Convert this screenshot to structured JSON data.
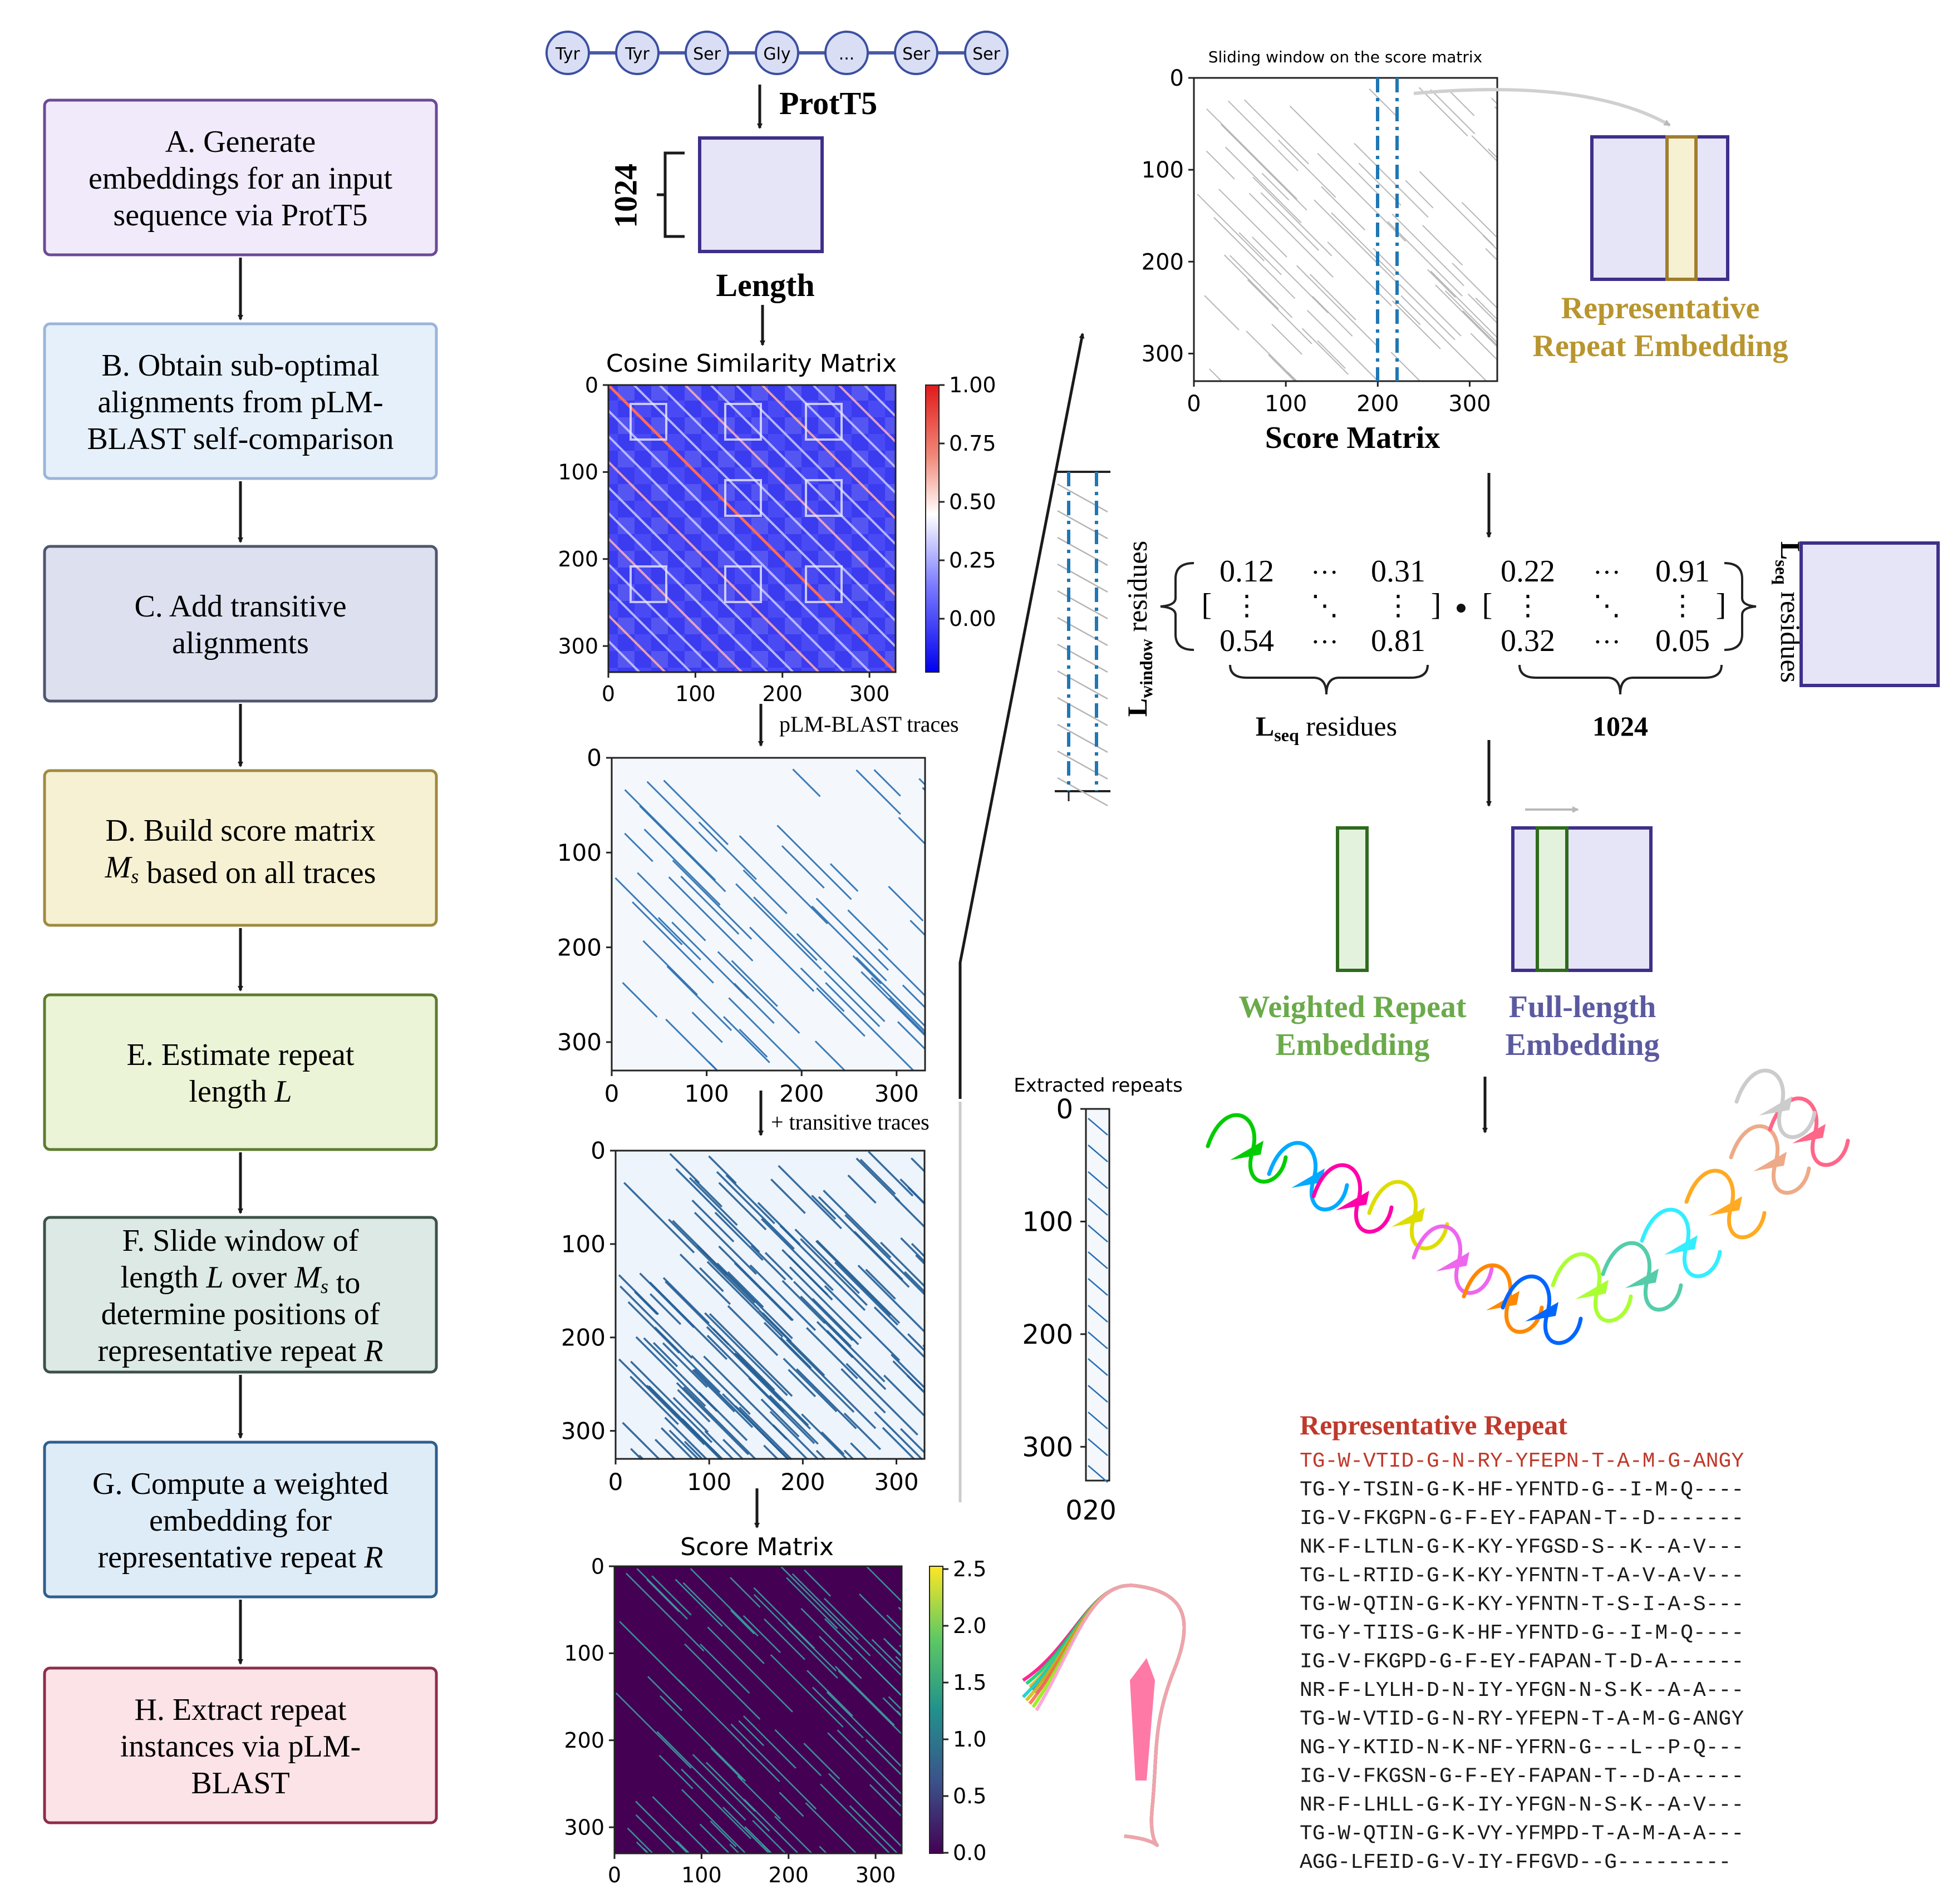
{
  "steps": [
    {
      "lines": [
        "A. Generate",
        "embeddings for an input",
        "sequence via ProtT5"
      ],
      "fill": "#f0eafa",
      "stroke": "#6b4a96"
    },
    {
      "lines": [
        "B. Obtain sub-optimal",
        "alignments from pLM-",
        "BLAST self-comparison"
      ],
      "fill": "#e6f0fb",
      "stroke": "#9cb4da"
    },
    {
      "lines": [
        "C. Add transitive",
        "alignments"
      ],
      "fill": "#dde1ef",
      "stroke": "#4f566e"
    },
    {
      "lines": [
        "D. Build score matrix",
        "M_s based on all traces"
      ],
      "fill": "#f6f1d2",
      "stroke": "#a08a40"
    },
    {
      "lines": [
        "E. Estimate repeat",
        "length L"
      ],
      "fill": "#ebf4d6",
      "stroke": "#5d7b2e"
    },
    {
      "lines": [
        "F. Slide window of",
        "length L over M_s to",
        "determine positions of",
        "representative repeat R"
      ],
      "fill": "#dce9e4",
      "stroke": "#3d5148"
    },
    {
      "lines": [
        "G. Compute a weighted",
        "embedding for",
        "representative repeat R"
      ],
      "fill": "#deecf8",
      "stroke": "#2f5e8c"
    },
    {
      "lines": [
        "H. Extract repeat",
        "instances via pLM-",
        "BLAST"
      ],
      "fill": "#fbe3e8",
      "stroke": "#8e2d4a"
    }
  ],
  "residues": [
    "Tyr",
    "Tyr",
    "Ser",
    "Gly",
    "...",
    "Ser",
    "Ser"
  ],
  "protT5_label": "ProtT5",
  "embedding_dim": "1024",
  "length_label": "Length",
  "cosine_title": "Cosine Similarity Matrix",
  "cosine_colorbar_ticks": [
    "1.00",
    "0.75",
    "0.50",
    "0.25",
    "0.00"
  ],
  "axis_ticks": [
    "0",
    "100",
    "200",
    "300"
  ],
  "plm_traces_label": "pLM-BLAST traces",
  "transitive_label": "+ transitive traces",
  "score_title": "Score Matrix",
  "score_colorbar_ticks": [
    "2.5",
    "2.0",
    "1.5",
    "1.0",
    "0.5",
    "0.0"
  ],
  "sliding_title": "Sliding window on the score matrix",
  "score_matrix_caption": "Score Matrix",
  "rep_embedding_label": [
    "Representative",
    "Repeat Embedding"
  ],
  "matrix_a": {
    "tl": "0.12",
    "tr": "0.31",
    "bl": "0.54",
    "br": "0.81"
  },
  "matrix_b": {
    "tl": "0.22",
    "tr": "0.91",
    "bl": "0.32",
    "br": "0.05"
  },
  "l_window_label": {
    "main": "L",
    "sub": "window",
    "rest": " residues"
  },
  "l_seq_label": {
    "main": "L",
    "sub": "seq",
    "rest": " residues"
  },
  "dim_1024": "1024",
  "weighted_label": [
    "Weighted Repeat",
    "Embedding"
  ],
  "fulllength_label": [
    "Full-length",
    "Embedding"
  ],
  "extracted_title": "Extracted repeats",
  "extracted_yticks": [
    "0",
    "100",
    "200",
    "300"
  ],
  "extracted_xticks": "020",
  "rep_repeat_title": "Representative Repeat",
  "alignment": [
    "TG-W-VTID-G-N-RY-YFEPN-T-A-M-G-ANGY",
    "TG-Y-TSIN-G-K-HF-YFNTD-G--I-M-Q----",
    "IG-V-FKGPN-G-F-EY-FAPAN-T--D-------",
    "NK-F-LTLN-G-K-KY-YFGSD-S--K--A-V---",
    "TG-L-RTID-G-K-KY-YFNTN-T-A-V-A-V---",
    "TG-W-QTIN-G-K-KY-YFNTN-T-S-I-A-S---",
    "TG-Y-TIIS-G-K-HF-YFNTD-G--I-M-Q----",
    "IG-V-FKGPD-G-F-EY-FAPAN-T-D-A------",
    "NR-F-LYLH-D-N-IY-YFGN-N-S-K--A-A---",
    "TG-W-VTID-G-N-RY-YFEPN-T-A-M-G-ANGY",
    "NG-Y-KTID-N-K-NF-YFRN-G---L--P-Q---",
    "IG-V-FKGSN-G-F-EY-FAPAN-T--D-A-----",
    "NR-F-LHLL-G-K-IY-YFGN-N-S-K--A-V---",
    "TG-W-QTIN-G-K-VY-YFMPD-T-A-M-A-A---",
    "AGG-LFEID-G-V-IY-FFGVD--G---------"
  ],
  "colors": {
    "rep_gold": "#b8952e",
    "weighted_green": "#6aaa4a",
    "fulllength_purple": "#5b5aa0",
    "score_caption_blue": "#9aaad4",
    "repeat_red": "#c0392b",
    "embed_fill": "#e6e4f7",
    "embed_stroke": "#3f2f8a"
  }
}
